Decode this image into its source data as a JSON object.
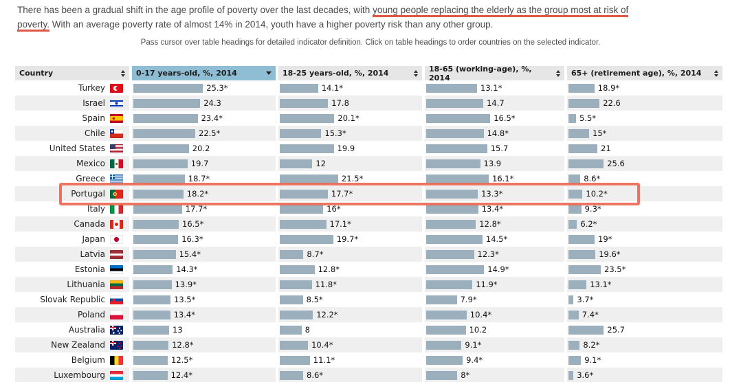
{
  "intro": {
    "text_before": "There has been a gradual shift in the age profile of poverty over the last decades, with ",
    "text_underlined": "young people replacing the elderly as the group most at risk of poverty.",
    "text_after": " With an average poverty rate of almost 14% in 2014, youth have a higher poverty risk than any other group."
  },
  "hint": "Pass cursor over table headings for detailed indicator definition. Click on table headings to order countries on the selected indicator.",
  "table": {
    "columns": [
      {
        "label": "Country",
        "selected": false,
        "sort_indicator": "both"
      },
      {
        "label": "0-17 years-old, %, 2014",
        "selected": true,
        "sort_indicator": "desc"
      },
      {
        "label": "18-25 years-old, %, 2014",
        "selected": false,
        "sort_indicator": "both"
      },
      {
        "label": "18-65 (working-age), %, 2014",
        "selected": false,
        "sort_indicator": "both"
      },
      {
        "label": "65+ (retirement age), %, 2014",
        "selected": false,
        "sort_indicator": "both"
      }
    ],
    "rows": [
      {
        "country": "Turkey",
        "flag": "turkey",
        "values": [
          "25.3*",
          "14.1*",
          "13.1*",
          "18.9*"
        ]
      },
      {
        "country": "Israel",
        "flag": "israel",
        "values": [
          "24.3",
          "17.8",
          "14.7",
          "22.6"
        ]
      },
      {
        "country": "Spain",
        "flag": "spain",
        "values": [
          "23.4*",
          "20.1*",
          "16.5*",
          "5.5*"
        ]
      },
      {
        "country": "Chile",
        "flag": "chile",
        "values": [
          "22.5*",
          "15.3*",
          "14.8*",
          "15*"
        ]
      },
      {
        "country": "United States",
        "flag": "united-states",
        "values": [
          "20.2",
          "19.9",
          "15.7",
          "21"
        ]
      },
      {
        "country": "Mexico",
        "flag": "mexico",
        "values": [
          "19.7",
          "12",
          "13.9",
          "25.6"
        ]
      },
      {
        "country": "Greece",
        "flag": "greece",
        "values": [
          "18.7*",
          "21.5*",
          "16.1*",
          "8.6*"
        ]
      },
      {
        "country": "Portugal",
        "flag": "portugal",
        "values": [
          "18.2*",
          "17.7*",
          "13.3*",
          "10.2*"
        ]
      },
      {
        "country": "Italy",
        "flag": "italy",
        "values": [
          "17.7*",
          "16*",
          "13.4*",
          "9.3*"
        ]
      },
      {
        "country": "Canada",
        "flag": "canada",
        "values": [
          "16.5*",
          "17.1*",
          "12.8*",
          "6.2*"
        ]
      },
      {
        "country": "Japan",
        "flag": "japan",
        "values": [
          "16.3*",
          "19.7*",
          "14.5*",
          "19*"
        ]
      },
      {
        "country": "Latvia",
        "flag": "latvia",
        "values": [
          "15.4*",
          "8.7*",
          "12.3*",
          "19.6*"
        ]
      },
      {
        "country": "Estonia",
        "flag": "estonia",
        "values": [
          "14.3*",
          "12.8*",
          "14.9*",
          "23.5*"
        ]
      },
      {
        "country": "Lithuania",
        "flag": "lithuania",
        "values": [
          "13.9*",
          "11.8*",
          "11.9*",
          "13.1*"
        ]
      },
      {
        "country": "Slovak Republic",
        "flag": "slovak-republic",
        "values": [
          "13.5*",
          "8.5*",
          "7.9*",
          "3.7*"
        ]
      },
      {
        "country": "Poland",
        "flag": "poland",
        "values": [
          "13.4*",
          "12.2*",
          "10.4*",
          "7.4*"
        ]
      },
      {
        "country": "Australia",
        "flag": "australia",
        "values": [
          "13",
          "8",
          "10.2",
          "25.7"
        ]
      },
      {
        "country": "New Zealand",
        "flag": "new-zealand",
        "values": [
          "12.8*",
          "10.4*",
          "9.1*",
          "8.2*"
        ]
      },
      {
        "country": "Belgium",
        "flag": "belgium",
        "values": [
          "12.5*",
          "11.1*",
          "9.4*",
          "9.1*"
        ]
      },
      {
        "country": "Luxembourg",
        "flag": "luxembourg",
        "values": [
          "12.4*",
          "8.6*",
          "8*",
          "3.6*"
        ]
      }
    ],
    "highlighted_country": "Portugal"
  },
  "colors": {
    "annotation_red": "#e25c46",
    "underline_red": "#dd5742",
    "selected_header_blue": "#8fbdd3",
    "header_gray": "#e6e6e6",
    "row_alt_gray": "#efefef",
    "bar_blue_gray": "#9cafbc"
  },
  "chart_data": {
    "type": "table",
    "title": "Poverty rates by age group, 2014",
    "categories": [
      "Turkey",
      "Israel",
      "Spain",
      "Chile",
      "United States",
      "Mexico",
      "Greece",
      "Portugal",
      "Italy",
      "Canada",
      "Japan",
      "Latvia",
      "Estonia",
      "Lithuania",
      "Slovak Republic",
      "Poland",
      "Australia",
      "New Zealand",
      "Belgium",
      "Luxembourg"
    ],
    "series": [
      {
        "name": "0-17 years-old, %, 2014",
        "values": [
          25.3,
          24.3,
          23.4,
          22.5,
          20.2,
          19.7,
          18.7,
          18.2,
          17.7,
          16.5,
          16.3,
          15.4,
          14.3,
          13.9,
          13.5,
          13.4,
          13,
          12.8,
          12.5,
          12.4
        ]
      },
      {
        "name": "18-25 years-old, %, 2014",
        "values": [
          14.1,
          17.8,
          20.1,
          15.3,
          19.9,
          12,
          21.5,
          17.7,
          16,
          17.1,
          19.7,
          8.7,
          12.8,
          11.8,
          8.5,
          12.2,
          8,
          10.4,
          11.1,
          8.6
        ]
      },
      {
        "name": "18-65 (working-age), %, 2014",
        "values": [
          13.1,
          14.7,
          16.5,
          14.8,
          15.7,
          13.9,
          16.1,
          13.3,
          13.4,
          12.8,
          14.5,
          12.3,
          14.9,
          11.9,
          7.9,
          10.4,
          10.2,
          9.1,
          9.4,
          8
        ]
      },
      {
        "name": "65+ (retirement age), %, 2014",
        "values": [
          18.9,
          22.6,
          5.5,
          15,
          21,
          25.6,
          8.6,
          10.2,
          9.3,
          6.2,
          19,
          19.6,
          23.5,
          13.1,
          3.7,
          7.4,
          25.7,
          8.2,
          9.1,
          3.6
        ]
      }
    ],
    "sorted_by": "0-17 years-old, %, 2014",
    "sort_order": "descending",
    "highlighted_row": "Portugal",
    "layout_hints": {
      "bars_inline_in_table": true,
      "row_striping": true
    }
  }
}
